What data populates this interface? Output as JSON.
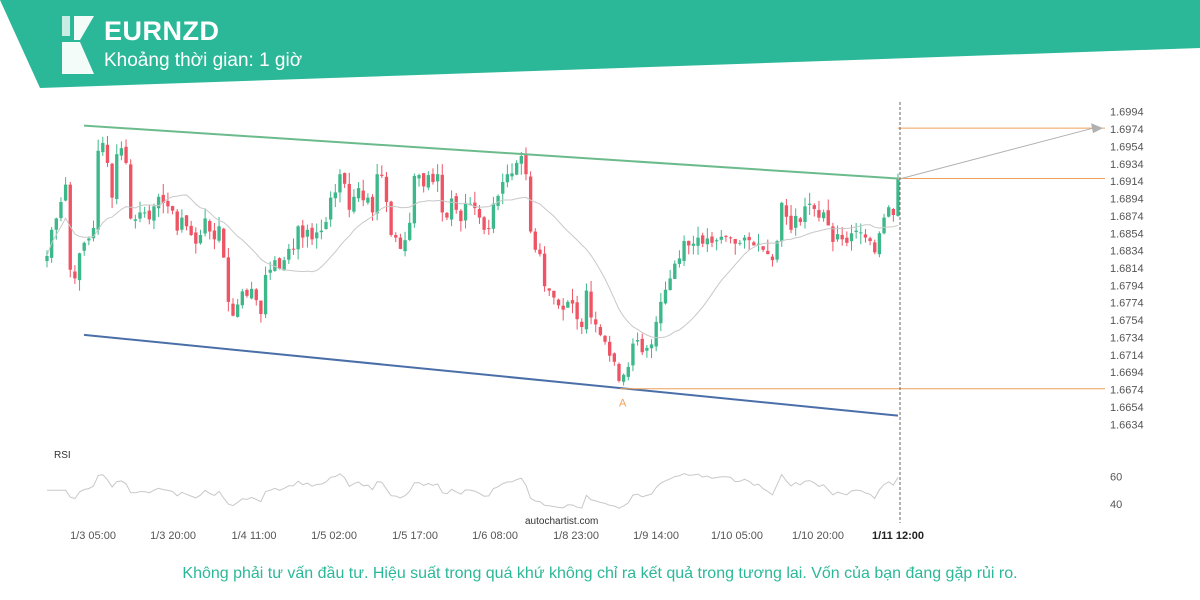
{
  "header": {
    "symbol": "EURNZD",
    "interval_text": "Khoảng thời gian: 1 giờ",
    "brand_color": "#2bb898"
  },
  "footer": {
    "disclaimer": "Không phải tư vấn đầu tư. Hiệu suất trong quá khứ không chỉ ra kết quả trong tương lai. Vốn của bạn đang gặp rủi ro."
  },
  "chart_data": [
    {
      "type": "candlestick",
      "title": "",
      "y_ticks": [
        "1.6994",
        "1.6974",
        "1.6954",
        "1.6934",
        "1.6914",
        "1.6894",
        "1.6874",
        "1.6854",
        "1.6834",
        "1.6814",
        "1.6794",
        "1.6774",
        "1.6754",
        "1.6734",
        "1.6714",
        "1.6694",
        "1.6674",
        "1.6654",
        "1.6634"
      ],
      "ylim": [
        1.6624,
        1.7004
      ],
      "x_ticks": [
        "1/3 05:00",
        "1/3 20:00",
        "1/4 11:00",
        "1/5 02:00",
        "1/5 17:00",
        "1/6 08:00",
        "1/8 23:00",
        "1/9 14:00",
        "1/10 05:00",
        "1/10 20:00",
        "1/11 12:00"
      ],
      "x_tick_highlight": "1/11 12:00",
      "colors": {
        "up": "#3cb88a",
        "down": "#ef5465",
        "ma": "#c8c8c8",
        "resistance": "#6cbb8c",
        "support": "#4a6fa8",
        "level": "#f0a05c",
        "projection": "#b0b0b0"
      },
      "resistance_line": {
        "start": 1.6978,
        "end": 1.6917
      },
      "support_line": {
        "start": 1.6737,
        "end": 1.6644
      },
      "point_label": "A",
      "point_price": 1.6675,
      "levels": [
        1.6975,
        1.6917,
        1.6675
      ],
      "projection_target": 1.6975,
      "watermark": "autochartist.com",
      "closes": [
        1.6828,
        1.6858,
        1.6871,
        1.689,
        1.691,
        1.6812,
        1.6802,
        1.6831,
        1.6843,
        1.6848,
        1.686,
        1.6949,
        1.6958,
        1.6935,
        1.6895,
        1.6945,
        1.6952,
        1.6935,
        1.6871,
        1.687,
        1.6878,
        1.6878,
        1.687,
        1.6885,
        1.6896,
        1.6889,
        1.6885,
        1.688,
        1.6857,
        1.6872,
        1.6862,
        1.6852,
        1.6842,
        1.6852,
        1.6871,
        1.6856,
        1.6847,
        1.6862,
        1.6826,
        1.6775,
        1.6759,
        1.6772,
        1.6787,
        1.6782,
        1.679,
        1.6777,
        1.6761,
        1.6806,
        1.6812,
        1.6823,
        1.6813,
        1.6823,
        1.6836,
        1.6836,
        1.6862,
        1.6849,
        1.6858,
        1.6847,
        1.6855,
        1.6857,
        1.6867,
        1.6895,
        1.6901,
        1.6922,
        1.6911,
        1.6881,
        1.6896,
        1.6906,
        1.6892,
        1.6895,
        1.6878,
        1.6922,
        1.692,
        1.689,
        1.6852,
        1.6849,
        1.6836,
        1.6846,
        1.6866,
        1.692,
        1.6921,
        1.6908,
        1.6921,
        1.6913,
        1.6922,
        1.6878,
        1.6872,
        1.6894,
        1.6881,
        1.6868,
        1.6889,
        1.6888,
        1.6883,
        1.6872,
        1.6858,
        1.6859,
        1.6888,
        1.6897,
        1.6913,
        1.6922,
        1.6923,
        1.6935,
        1.6943,
        1.6922,
        1.6856,
        1.6835,
        1.683,
        1.6793,
        1.6788,
        1.678,
        1.6771,
        1.6766,
        1.6775,
        1.6773,
        1.6755,
        1.6746,
        1.6788,
        1.6757,
        1.6749,
        1.6737,
        1.6729,
        1.6713,
        1.6706,
        1.6684,
        1.6691,
        1.67,
        1.6727,
        1.6731,
        1.6717,
        1.6722,
        1.6726,
        1.6752,
        1.6775,
        1.6789,
        1.6802,
        1.6819,
        1.6825,
        1.6845,
        1.684,
        1.6842,
        1.6849,
        1.6842,
        1.6848,
        1.6843,
        1.6846,
        1.685,
        1.685,
        1.6849,
        1.6842,
        1.6843,
        1.6849,
        1.6846,
        1.684,
        1.6842,
        1.6835,
        1.683,
        1.6823,
        1.6845,
        1.6889,
        1.6873,
        1.6858,
        1.6874,
        1.6867,
        1.6885,
        1.6888,
        1.6882,
        1.6872,
        1.6878,
        1.6863,
        1.6844,
        1.6853,
        1.6847,
        1.6843,
        1.6854,
        1.6857,
        1.6855,
        1.6849,
        1.6845,
        1.6832,
        1.6854,
        1.6872,
        1.6884,
        1.6875,
        1.6916
      ],
      "rsi": {
        "label": "RSI",
        "ticks": [
          60,
          40
        ],
        "ylim": [
          32,
          72
        ],
        "line_color": "#c8c8c8"
      }
    }
  ]
}
